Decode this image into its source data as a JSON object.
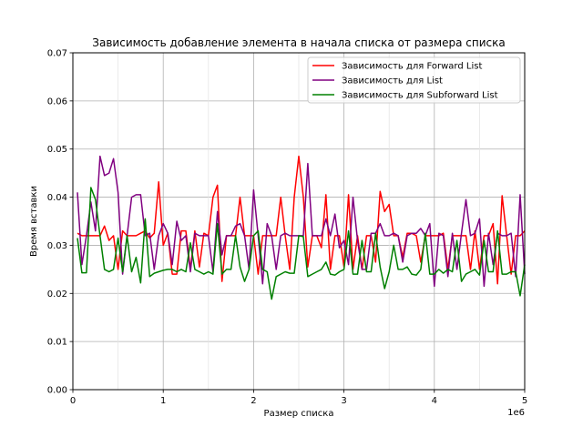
{
  "chart_data": {
    "type": "line",
    "title": "Зависимость добавление элемента в начала списка от размера списка",
    "xlabel": "Размер списка",
    "ylabel": "Время вставки",
    "x_scale_label": "1e6",
    "xlim": [
      0,
      5
    ],
    "ylim": [
      0,
      0.07
    ],
    "x_ticks": [
      0,
      1,
      2,
      3,
      4,
      5
    ],
    "x_tick_labels": [
      "0",
      "1",
      "2",
      "3",
      "4",
      "5"
    ],
    "y_ticks": [
      0.0,
      0.01,
      0.02,
      0.03,
      0.04,
      0.05,
      0.06,
      0.07
    ],
    "y_tick_labels": [
      "0.00",
      "0.01",
      "0.02",
      "0.03",
      "0.04",
      "0.05",
      "0.06",
      "0.07"
    ],
    "x_minor_grid": [
      0.5,
      1.5,
      2.5,
      3.5,
      4.5
    ],
    "grid": true,
    "legend_position": "top-right",
    "x": [
      0.05,
      0.1,
      0.15,
      0.2,
      0.25,
      0.3,
      0.35,
      0.4,
      0.45,
      0.5,
      0.55,
      0.6,
      0.65,
      0.7,
      0.75,
      0.8,
      0.85,
      0.9,
      0.95,
      1.0,
      1.05,
      1.1,
      1.15,
      1.2,
      1.25,
      1.3,
      1.35,
      1.4,
      1.45,
      1.5,
      1.55,
      1.6,
      1.65,
      1.7,
      1.75,
      1.8,
      1.85,
      1.9,
      1.95,
      2.0,
      2.05,
      2.1,
      2.15,
      2.2,
      2.25,
      2.3,
      2.35,
      2.4,
      2.45,
      2.5,
      2.55,
      2.6,
      2.65,
      2.7,
      2.75,
      2.8,
      2.85,
      2.9,
      2.95,
      3.0,
      3.05,
      3.1,
      3.15,
      3.2,
      3.25,
      3.3,
      3.35,
      3.4,
      3.45,
      3.5,
      3.55,
      3.6,
      3.65,
      3.7,
      3.75,
      3.8,
      3.85,
      3.9,
      3.95,
      4.0,
      4.05,
      4.1,
      4.15,
      4.2,
      4.25,
      4.3,
      4.35,
      4.4,
      4.45,
      4.5,
      4.55,
      4.6,
      4.65,
      4.7,
      4.75,
      4.8,
      4.85,
      4.9,
      4.95,
      5.0
    ],
    "series": [
      {
        "name": "Зависимость для Forward List",
        "color": "#ff0000",
        "values": [
          0.0325,
          0.032,
          0.032,
          0.032,
          0.032,
          0.032,
          0.034,
          0.031,
          0.032,
          0.025,
          0.033,
          0.032,
          0.032,
          0.032,
          0.0325,
          0.033,
          0.0315,
          0.0325,
          0.0432,
          0.03,
          0.0325,
          0.024,
          0.024,
          0.033,
          0.033,
          0.025,
          0.033,
          0.0255,
          0.0325,
          0.032,
          0.04,
          0.0425,
          0.0225,
          0.032,
          0.032,
          0.032,
          0.04,
          0.032,
          0.032,
          0.032,
          0.024,
          0.032,
          0.032,
          0.032,
          0.032,
          0.04,
          0.032,
          0.025,
          0.04,
          0.0485,
          0.04,
          0.0255,
          0.032,
          0.032,
          0.0295,
          0.0405,
          0.025,
          0.032,
          0.032,
          0.0255,
          0.0405,
          0.025,
          0.032,
          0.025,
          0.032,
          0.032,
          0.0265,
          0.0412,
          0.037,
          0.0385,
          0.032,
          0.032,
          0.0275,
          0.0325,
          0.0325,
          0.032,
          0.0265,
          0.032,
          0.032,
          0.032,
          0.032,
          0.0325,
          0.025,
          0.032,
          0.032,
          0.032,
          0.032,
          0.025,
          0.033,
          0.025,
          0.032,
          0.032,
          0.0345,
          0.022,
          0.0403,
          0.032,
          0.024,
          0.032,
          0.032,
          0.033
        ]
      },
      {
        "name": "Зависимость для List",
        "color": "#800080",
        "values": [
          0.041,
          0.026,
          0.032,
          0.039,
          0.033,
          0.0485,
          0.0445,
          0.045,
          0.048,
          0.041,
          0.024,
          0.032,
          0.04,
          0.0405,
          0.0405,
          0.032,
          0.0325,
          0.025,
          0.032,
          0.0345,
          0.0325,
          0.026,
          0.035,
          0.031,
          0.032,
          0.0245,
          0.0325,
          0.032,
          0.032,
          0.032,
          0.0245,
          0.037,
          0.028,
          0.032,
          0.032,
          0.034,
          0.0345,
          0.032,
          0.025,
          0.0415,
          0.032,
          0.022,
          0.0345,
          0.032,
          0.025,
          0.032,
          0.0325,
          0.032,
          0.032,
          0.032,
          0.032,
          0.047,
          0.032,
          0.032,
          0.032,
          0.0355,
          0.032,
          0.0365,
          0.0295,
          0.031,
          0.026,
          0.04,
          0.031,
          0.025,
          0.025,
          0.0325,
          0.0325,
          0.0345,
          0.032,
          0.032,
          0.0325,
          0.032,
          0.0265,
          0.032,
          0.0325,
          0.0325,
          0.0335,
          0.032,
          0.0345,
          0.0215,
          0.0325,
          0.032,
          0.0235,
          0.0325,
          0.025,
          0.0325,
          0.0395,
          0.032,
          0.0325,
          0.0355,
          0.0215,
          0.0325,
          0.026,
          0.0325,
          0.032,
          0.032,
          0.0325,
          0.0235,
          0.0405,
          0.024
        ]
      },
      {
        "name": "Зависимость для Subforward List",
        "color": "#008000",
        "values": [
          0.0315,
          0.0243,
          0.0243,
          0.042,
          0.0395,
          0.032,
          0.025,
          0.0245,
          0.025,
          0.0315,
          0.0245,
          0.032,
          0.0245,
          0.0275,
          0.0222,
          0.0355,
          0.0235,
          0.0242,
          0.0245,
          0.0248,
          0.025,
          0.025,
          0.0245,
          0.025,
          0.0245,
          0.0305,
          0.025,
          0.0245,
          0.024,
          0.0245,
          0.024,
          0.0345,
          0.024,
          0.025,
          0.025,
          0.032,
          0.0255,
          0.0225,
          0.025,
          0.032,
          0.033,
          0.025,
          0.0245,
          0.0188,
          0.0235,
          0.024,
          0.0245,
          0.0242,
          0.0242,
          0.032,
          0.0318,
          0.0235,
          0.024,
          0.0245,
          0.025,
          0.0265,
          0.024,
          0.0238,
          0.0245,
          0.025,
          0.033,
          0.024,
          0.024,
          0.031,
          0.0245,
          0.0245,
          0.0325,
          0.0255,
          0.021,
          0.0245,
          0.03,
          0.025,
          0.025,
          0.0255,
          0.024,
          0.0238,
          0.025,
          0.0325,
          0.024,
          0.024,
          0.025,
          0.0242,
          0.025,
          0.0245,
          0.031,
          0.0225,
          0.024,
          0.0245,
          0.025,
          0.0238,
          0.031,
          0.0245,
          0.0245,
          0.033,
          0.024,
          0.024,
          0.0245,
          0.0245,
          0.0195,
          0.026
        ]
      }
    ]
  }
}
